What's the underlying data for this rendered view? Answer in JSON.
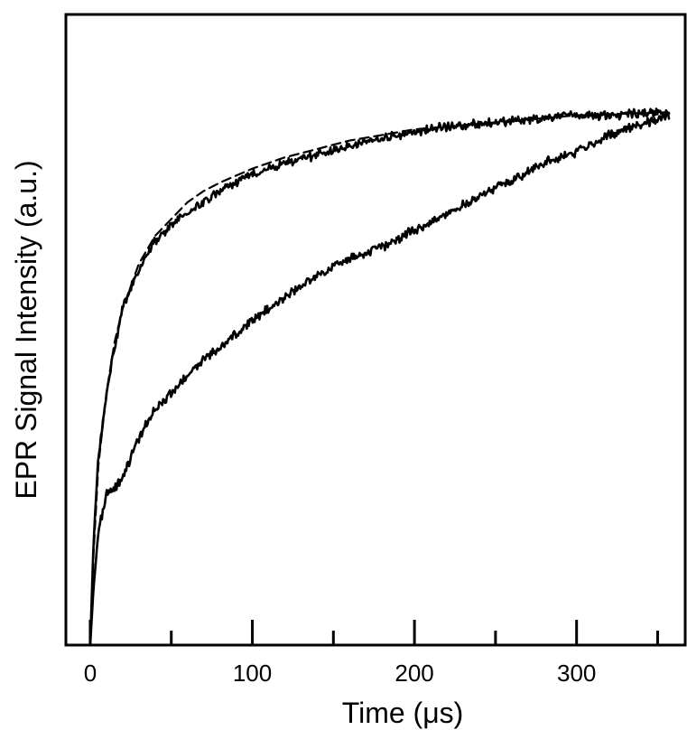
{
  "chart_data": {
    "type": "line",
    "xlabel": "Time (μs)",
    "ylabel": "EPR Signal Intensity (a.u.)",
    "xlim": [
      -15,
      367
    ],
    "ylim": [
      0,
      1.125
    ],
    "x_ticks": [
      0,
      100,
      200,
      300
    ],
    "x_minor_ticks": [
      50,
      150,
      250,
      350
    ],
    "y_tick_labels": "none",
    "grid": false,
    "legend": "none",
    "line_color": "#000000",
    "series": [
      {
        "style": "solid",
        "noisy": true,
        "x": [
          0,
          2,
          5,
          10,
          15,
          20,
          30,
          40,
          50,
          60,
          70,
          80,
          100,
          120,
          140,
          160,
          180,
          200,
          220,
          240,
          260,
          280,
          300,
          320,
          340,
          357
        ],
        "y": [
          0.0,
          0.18,
          0.33,
          0.45,
          0.53,
          0.6,
          0.67,
          0.72,
          0.75,
          0.77,
          0.79,
          0.81,
          0.84,
          0.86,
          0.875,
          0.89,
          0.905,
          0.915,
          0.925,
          0.93,
          0.935,
          0.94,
          0.945,
          0.945,
          0.948,
          0.95
        ]
      },
      {
        "style": "dashed",
        "noisy": false,
        "x": [
          0,
          2,
          5,
          10,
          15,
          20,
          30,
          40,
          50,
          60,
          70,
          80,
          100,
          120,
          140,
          160,
          180,
          200,
          220,
          240,
          260,
          280,
          300,
          320,
          340,
          357
        ],
        "y": [
          0.0,
          0.16,
          0.32,
          0.45,
          0.54,
          0.6,
          0.68,
          0.73,
          0.76,
          0.79,
          0.81,
          0.825,
          0.85,
          0.87,
          0.885,
          0.9,
          0.91,
          0.92,
          0.925,
          0.93,
          0.935,
          0.94,
          0.945,
          0.947,
          0.949,
          0.95
        ]
      },
      {
        "style": "solid",
        "noisy": true,
        "x": [
          0,
          2,
          5,
          10,
          15,
          20,
          30,
          40,
          50,
          60,
          70,
          80,
          100,
          120,
          140,
          160,
          180,
          200,
          220,
          240,
          260,
          280,
          300,
          320,
          340,
          357
        ],
        "y": [
          0.0,
          0.1,
          0.2,
          0.27,
          0.28,
          0.3,
          0.37,
          0.42,
          0.45,
          0.48,
          0.51,
          0.53,
          0.58,
          0.62,
          0.66,
          0.69,
          0.71,
          0.74,
          0.77,
          0.8,
          0.83,
          0.86,
          0.88,
          0.91,
          0.93,
          0.945
        ]
      }
    ]
  }
}
